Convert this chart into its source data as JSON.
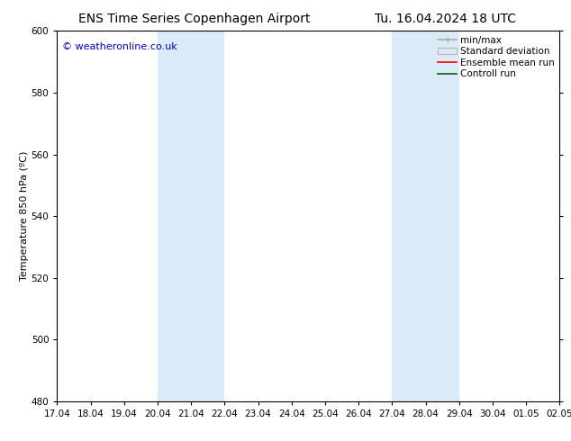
{
  "title_left": "ENS Time Series Copenhagen Airport",
  "title_right": "Tu. 16.04.2024 18 UTC",
  "ylabel": "Temperature 850 hPa (ºC)",
  "xlim_start": 0,
  "xlim_end": 15,
  "ylim": [
    480,
    600
  ],
  "yticks": [
    480,
    500,
    520,
    540,
    560,
    580,
    600
  ],
  "xtick_labels": [
    "17.04",
    "18.04",
    "19.04",
    "20.04",
    "21.04",
    "22.04",
    "23.04",
    "24.04",
    "25.04",
    "26.04",
    "27.04",
    "28.04",
    "29.04",
    "30.04",
    "01.05",
    "02.05"
  ],
  "shaded_regions": [
    {
      "xstart": 3,
      "xend": 5,
      "color": "#daeaf7"
    },
    {
      "xstart": 10,
      "xend": 12,
      "color": "#daeaf7"
    }
  ],
  "watermark_text": "© weatheronline.co.uk",
  "watermark_color": "#0000cc",
  "bg_color": "#ffffff",
  "plot_bg_color": "#ffffff",
  "legend_items": [
    {
      "label": "min/max",
      "color": "#aaaaaa",
      "style": "line_with_caps"
    },
    {
      "label": "Standard deviation",
      "color": "#cccccc",
      "style": "filled_box"
    },
    {
      "label": "Ensemble mean run",
      "color": "#ff0000",
      "style": "line"
    },
    {
      "label": "Controll run",
      "color": "#006600",
      "style": "line"
    }
  ],
  "title_fontsize": 10,
  "axis_label_fontsize": 8,
  "tick_fontsize": 7.5,
  "legend_fontsize": 7.5,
  "watermark_fontsize": 8
}
